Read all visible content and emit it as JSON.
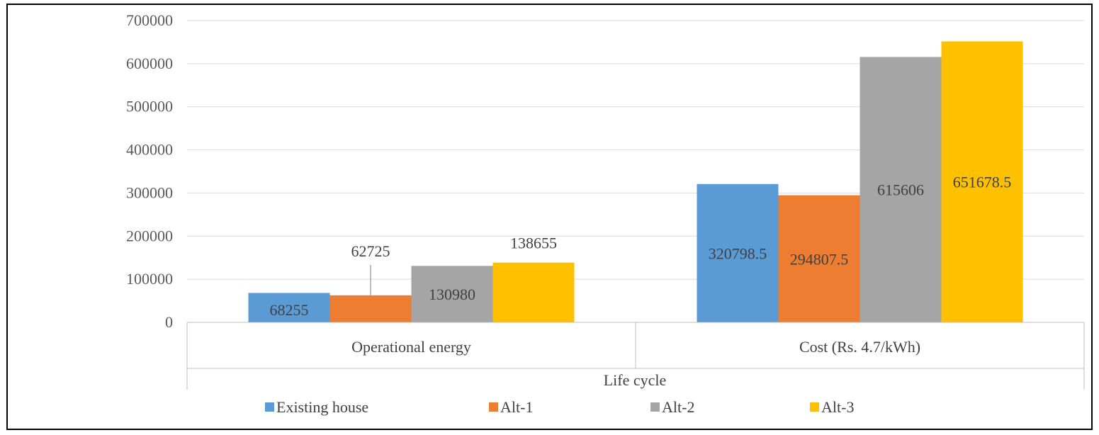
{
  "chart_data": {
    "type": "bar",
    "title": "",
    "xlabel": "Life cycle",
    "ylabel": "",
    "ylim": [
      0,
      700000
    ],
    "yticks": [
      0,
      100000,
      200000,
      300000,
      400000,
      500000,
      600000,
      700000
    ],
    "categories": [
      "Operational energy",
      "Cost (Rs. 4.7/kWh)"
    ],
    "series": [
      {
        "name": "Existing house",
        "color": "#5b9bd5",
        "values": [
          68255,
          320798.5
        ],
        "labels": [
          "68255",
          "320798.5"
        ]
      },
      {
        "name": "Alt-1",
        "color": "#ed7d31",
        "values": [
          62725,
          294807.5
        ],
        "labels": [
          "62725",
          "294807.5"
        ]
      },
      {
        "name": "Alt-2",
        "color": "#a5a5a5",
        "values": [
          130980,
          615606
        ],
        "labels": [
          "130980",
          "615606"
        ]
      },
      {
        "name": "Alt-3",
        "color": "#ffc000",
        "values": [
          138655,
          651678.5
        ],
        "labels": [
          "138655",
          "651678.5"
        ]
      }
    ],
    "grid": true,
    "legend": "bottom"
  }
}
